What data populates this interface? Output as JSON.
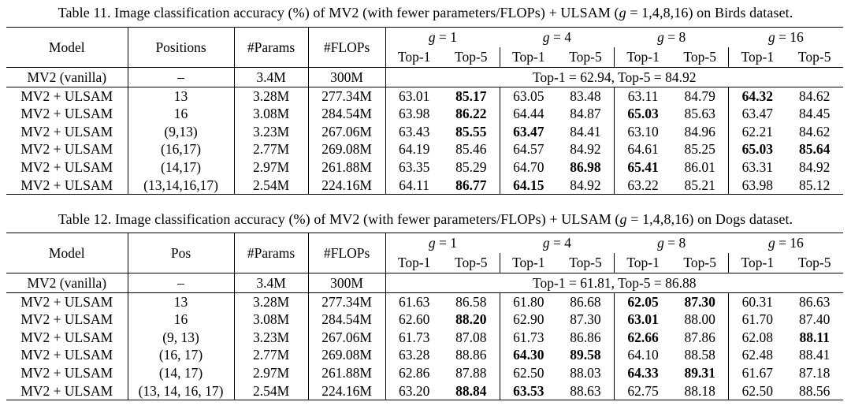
{
  "page": {
    "background": "#ffffff",
    "text_color": "#000000"
  },
  "tables": [
    {
      "name": "table-11",
      "caption": {
        "before": "Table 11. Image classification accuracy (%) of MV2 (with fewer parameters/FLOPs) + ULSAM (",
        "g_symbol": "g",
        "after": " = 1,4,8,16) on Birds dataset."
      },
      "header": {
        "columns": [
          "Model",
          "Positions",
          "#Params",
          "#FLOPs"
        ],
        "g_symbol": "g",
        "groups": [
          " = 1",
          " = 4",
          " = 8",
          " = 16"
        ],
        "subheaders": [
          "Top-1",
          "Top-5",
          "Top-1",
          "Top-5",
          "Top-1",
          "Top-5",
          "Top-1",
          "Top-5"
        ]
      },
      "vanilla": {
        "model": "MV2 (vanilla)",
        "positions": "–",
        "params": "3.4M",
        "flops": "300M",
        "summary": "Top-1 = 62.94, Top-5 = 84.92"
      },
      "rows": [
        {
          "model": "MV2 + ULSAM",
          "positions": "13",
          "params": "3.28M",
          "flops": "277.34M",
          "values": [
            "63.01",
            "85.17",
            "63.05",
            "83.48",
            "63.11",
            "84.79",
            "64.32",
            "84.62"
          ],
          "bold": [
            0,
            1,
            0,
            0,
            0,
            0,
            1,
            0
          ]
        },
        {
          "model": "MV2 + ULSAM",
          "positions": "16",
          "params": "3.08M",
          "flops": "284.54M",
          "values": [
            "63.98",
            "86.22",
            "64.44",
            "84.87",
            "65.03",
            "85.63",
            "63.47",
            "84.45"
          ],
          "bold": [
            0,
            1,
            0,
            0,
            1,
            0,
            0,
            0
          ]
        },
        {
          "model": "MV2 + ULSAM",
          "positions": "(9,13)",
          "params": "3.23M",
          "flops": "267.06M",
          "values": [
            "63.43",
            "85.55",
            "63.47",
            "84.41",
            "63.10",
            "84.96",
            "62.21",
            "84.62"
          ],
          "bold": [
            0,
            1,
            1,
            0,
            0,
            0,
            0,
            0
          ]
        },
        {
          "model": "MV2 + ULSAM",
          "positions": "(16,17)",
          "params": "2.77M",
          "flops": "269.08M",
          "values": [
            "64.19",
            "85.46",
            "64.57",
            "84.92",
            "64.61",
            "85.25",
            "65.03",
            "85.64"
          ],
          "bold": [
            0,
            0,
            0,
            0,
            0,
            0,
            1,
            1
          ]
        },
        {
          "model": "MV2 + ULSAM",
          "positions": "(14,17)",
          "params": "2.97M",
          "flops": "261.88M",
          "values": [
            "63.35",
            "85.29",
            "64.70",
            "86.98",
            "65.41",
            "86.01",
            "63.31",
            "84.92"
          ],
          "bold": [
            0,
            0,
            0,
            1,
            1,
            0,
            0,
            0
          ]
        },
        {
          "model": "MV2 + ULSAM",
          "positions": "(13,14,16,17)",
          "params": "2.54M",
          "flops": "224.16M",
          "values": [
            "64.11",
            "86.77",
            "64.15",
            "84.92",
            "63.22",
            "85.21",
            "63.98",
            "85.12"
          ],
          "bold": [
            0,
            1,
            1,
            0,
            0,
            0,
            0,
            0
          ]
        }
      ]
    },
    {
      "name": "table-12",
      "caption": {
        "before": "Table 12. Image classification accuracy (%) of MV2 (with fewer parameters/FLOPs) + ULSAM (",
        "g_symbol": "g",
        "after": " = 1,4,8,16) on Dogs dataset."
      },
      "header": {
        "columns": [
          "Model",
          "Pos",
          "#Params",
          "#FLOPs"
        ],
        "g_symbol": "g",
        "groups": [
          " = 1",
          " = 4",
          " = 8",
          " = 16"
        ],
        "subheaders": [
          "Top-1",
          "Top-5",
          "Top-1",
          "Top-5",
          "Top-1",
          "Top-5",
          "Top-1",
          "Top-5"
        ]
      },
      "vanilla": {
        "model": "MV2 (vanilla)",
        "positions": "–",
        "params": "3.4M",
        "flops": "300M",
        "summary": "Top-1 = 61.81, Top-5 = 86.88"
      },
      "rows": [
        {
          "model": "MV2 + ULSAM",
          "positions": "13",
          "params": "3.28M",
          "flops": "277.34M",
          "values": [
            "61.63",
            "86.58",
            "61.80",
            "86.68",
            "62.05",
            "87.30",
            "60.31",
            "86.63"
          ],
          "bold": [
            0,
            0,
            0,
            0,
            1,
            1,
            0,
            0
          ]
        },
        {
          "model": "MV2 + ULSAM",
          "positions": "16",
          "params": "3.08M",
          "flops": "284.54M",
          "values": [
            "62.60",
            "88.20",
            "62.90",
            "87.30",
            "63.01",
            "88.00",
            "61.70",
            "87.40"
          ],
          "bold": [
            0,
            1,
            0,
            0,
            1,
            0,
            0,
            0
          ]
        },
        {
          "model": "MV2 + ULSAM",
          "positions": "(9, 13)",
          "params": "3.23M",
          "flops": "267.06M",
          "values": [
            "61.73",
            "87.08",
            "61.73",
            "86.86",
            "62.66",
            "87.86",
            "62.08",
            "88.11"
          ],
          "bold": [
            0,
            0,
            0,
            0,
            1,
            0,
            0,
            1
          ]
        },
        {
          "model": "MV2 + ULSAM",
          "positions": "(16, 17)",
          "params": "2.77M",
          "flops": "269.08M",
          "values": [
            "63.28",
            "88.86",
            "64.30",
            "89.58",
            "64.10",
            "88.58",
            "62.48",
            "88.41"
          ],
          "bold": [
            0,
            0,
            1,
            1,
            0,
            0,
            0,
            0
          ]
        },
        {
          "model": "MV2 + ULSAM",
          "positions": "(14, 17)",
          "params": "2.97M",
          "flops": "261.88M",
          "values": [
            "62.86",
            "87.88",
            "62.50",
            "88.03",
            "64.33",
            "89.31",
            "61.67",
            "87.18"
          ],
          "bold": [
            0,
            0,
            0,
            0,
            1,
            1,
            0,
            0
          ]
        },
        {
          "model": "MV2 + ULSAM",
          "positions": "(13, 14, 16, 17)",
          "params": "2.54M",
          "flops": "224.16M",
          "values": [
            "63.20",
            "88.84",
            "63.53",
            "88.63",
            "62.75",
            "88.18",
            "62.50",
            "88.56"
          ],
          "bold": [
            0,
            1,
            1,
            0,
            0,
            0,
            0,
            0
          ]
        }
      ]
    }
  ]
}
